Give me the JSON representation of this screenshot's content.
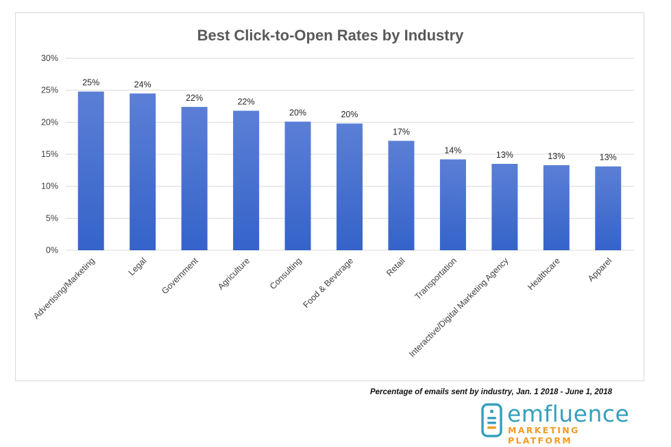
{
  "chart_data": {
    "type": "bar",
    "title": "Best Click-to-Open Rates by Industry",
    "categories": [
      "Advertising/Marketing",
      "Legal",
      "Government",
      "Agriculture",
      "Consulting",
      "Food & Beverage",
      "Retail",
      "Transportation",
      "Interactive/Digital Marketing Agency",
      "Healthcare",
      "Apparel"
    ],
    "values": [
      24.8,
      24.5,
      22.4,
      21.8,
      20.1,
      19.8,
      17.1,
      14.2,
      13.5,
      13.3,
      13.1
    ],
    "data_labels": [
      "25%",
      "24%",
      "22%",
      "22%",
      "20%",
      "20%",
      "17%",
      "14%",
      "13%",
      "13%",
      "13%"
    ],
    "ylim": [
      0,
      30
    ],
    "yticks": [
      "0%",
      "5%",
      "10%",
      "15%",
      "20%",
      "25%",
      "30%"
    ],
    "ytick_values": [
      0,
      5,
      10,
      15,
      20,
      25,
      30
    ],
    "grid": true,
    "legend": "none",
    "colors": {
      "bar_top": "#5b7fd6",
      "bar_bottom": "#3563c9",
      "gridline": "#d9d9d9",
      "text": "#404040",
      "title": "#595959"
    }
  },
  "footnote": "Percentage of emails sent by industry, Jan. 1 2018 - June 1, 2018",
  "brand": {
    "name": "emfluence",
    "tagline": "MARKETING PLATFORM",
    "colors": {
      "primary": "#35a0bd",
      "accent": "#f29b26"
    }
  }
}
